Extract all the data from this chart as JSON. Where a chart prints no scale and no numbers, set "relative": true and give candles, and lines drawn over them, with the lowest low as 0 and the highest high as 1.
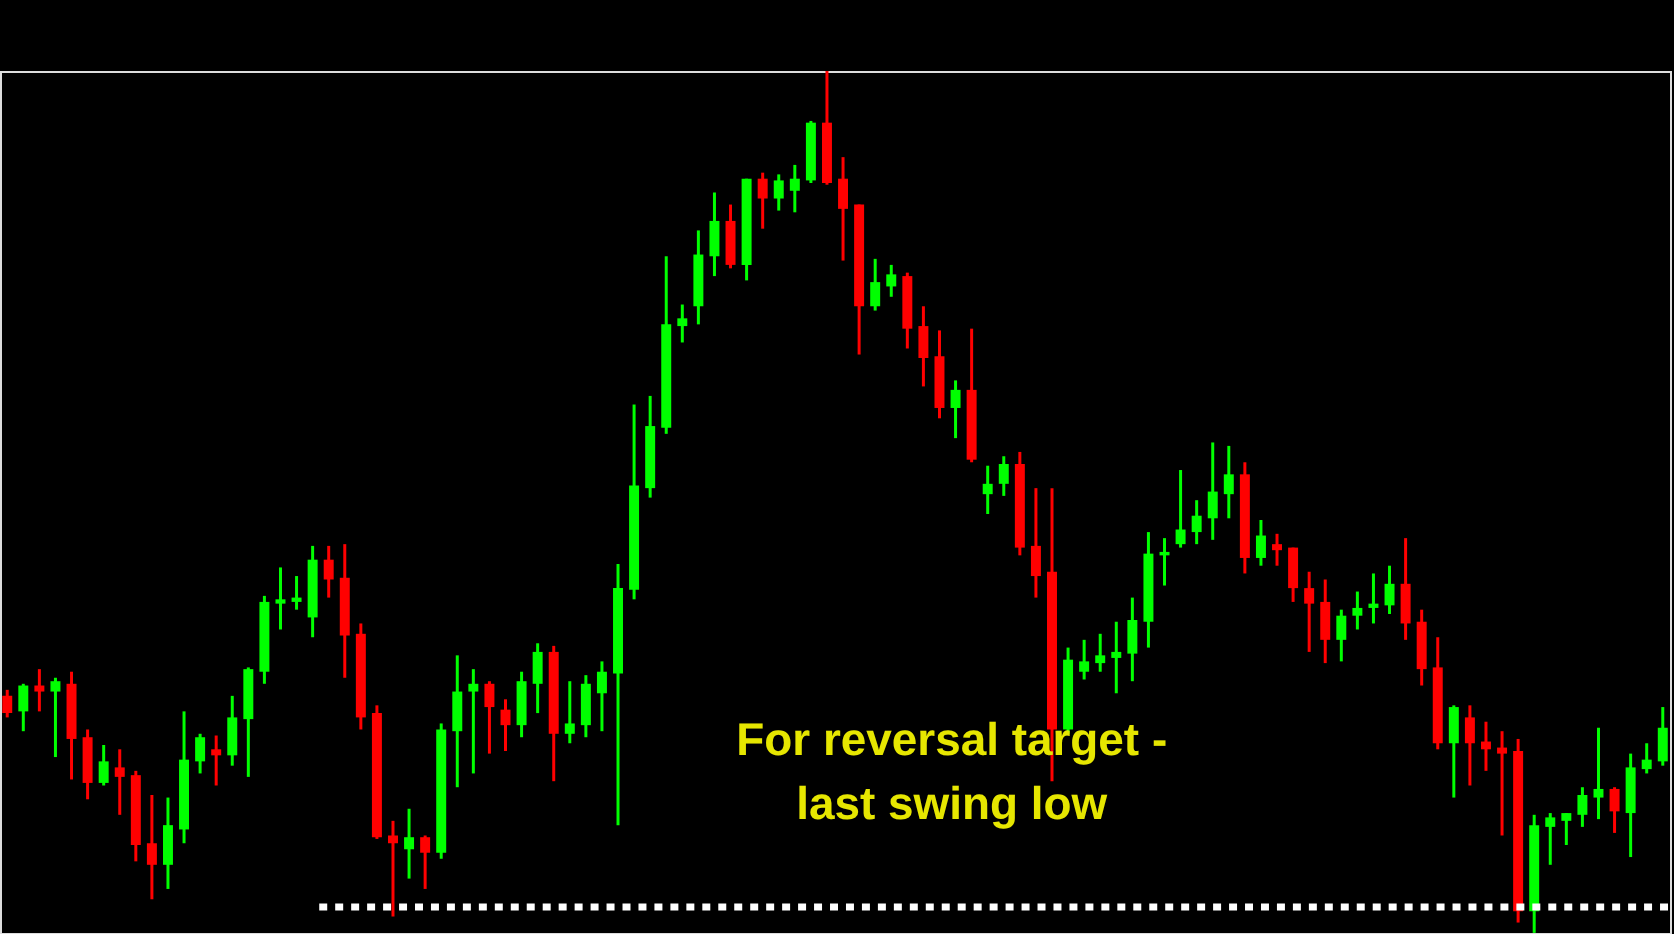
{
  "chart_data": {
    "type": "candlestick",
    "relative": true,
    "categories": [
      null,
      null,
      null,
      null,
      null,
      null,
      null,
      null,
      null,
      null,
      null,
      null,
      null,
      null,
      null,
      null,
      null,
      null,
      null,
      null,
      null,
      null,
      null,
      null,
      null,
      null,
      null,
      null,
      null,
      null,
      null,
      null,
      null,
      null,
      null,
      null,
      null,
      null,
      null,
      null,
      null,
      null,
      null,
      null,
      null,
      null,
      null,
      null,
      null,
      null,
      null,
      null,
      null,
      null,
      null,
      null,
      null,
      null,
      null,
      null,
      null,
      null,
      null,
      null,
      null,
      null,
      null,
      null,
      null,
      null,
      null,
      null,
      null,
      null,
      null,
      null,
      null,
      null,
      null,
      null,
      null,
      null,
      null,
      null,
      null,
      null,
      null,
      null,
      null,
      null,
      null,
      null,
      null,
      null,
      null,
      null,
      null,
      null,
      null,
      null,
      null,
      null,
      null,
      null
    ],
    "ohlc": [
      [
        0.275,
        0.282,
        0.25,
        0.255
      ],
      [
        0.257,
        0.289,
        0.234,
        0.287
      ],
      [
        0.287,
        0.306,
        0.257,
        0.28
      ],
      [
        0.28,
        0.296,
        0.204,
        0.292
      ],
      [
        0.289,
        0.303,
        0.178,
        0.225
      ],
      [
        0.227,
        0.236,
        0.155,
        0.174
      ],
      [
        0.174,
        0.218,
        0.171,
        0.199
      ],
      [
        0.192,
        0.213,
        0.137,
        0.181
      ],
      [
        0.183,
        0.188,
        0.083,
        0.102
      ],
      [
        0.104,
        0.16,
        0.039,
        0.079
      ],
      [
        0.079,
        0.157,
        0.051,
        0.125
      ],
      [
        0.12,
        0.257,
        0.104,
        0.201
      ],
      [
        0.199,
        0.231,
        0.185,
        0.227
      ],
      [
        0.213,
        0.229,
        0.171,
        0.206
      ],
      [
        0.206,
        0.275,
        0.194,
        0.25
      ],
      [
        0.248,
        0.308,
        0.181,
        0.306
      ],
      [
        0.303,
        0.391,
        0.289,
        0.384
      ],
      [
        0.382,
        0.424,
        0.352,
        0.387
      ],
      [
        0.384,
        0.414,
        0.375,
        0.389
      ],
      [
        0.366,
        0.449,
        0.343,
        0.433
      ],
      [
        0.433,
        0.449,
        0.389,
        0.41
      ],
      [
        0.412,
        0.451,
        0.296,
        0.345
      ],
      [
        0.347,
        0.359,
        0.236,
        0.25
      ],
      [
        0.255,
        0.264,
        0.109,
        0.111
      ],
      [
        0.113,
        0.13,
        0.019,
        0.104
      ],
      [
        0.097,
        0.144,
        0.063,
        0.111
      ],
      [
        0.111,
        0.113,
        0.051,
        0.093
      ],
      [
        0.093,
        0.243,
        0.086,
        0.236
      ],
      [
        0.234,
        0.322,
        0.169,
        0.28
      ],
      [
        0.28,
        0.306,
        0.185,
        0.289
      ],
      [
        0.289,
        0.292,
        0.208,
        0.262
      ],
      [
        0.259,
        0.271,
        0.211,
        0.241
      ],
      [
        0.241,
        0.303,
        0.227,
        0.292
      ],
      [
        0.289,
        0.336,
        0.255,
        0.326
      ],
      [
        0.326,
        0.333,
        0.176,
        0.231
      ],
      [
        0.231,
        0.292,
        0.22,
        0.243
      ],
      [
        0.241,
        0.299,
        0.227,
        0.289
      ],
      [
        0.278,
        0.315,
        0.234,
        0.303
      ],
      [
        0.301,
        0.428,
        0.125,
        0.4
      ],
      [
        0.398,
        0.613,
        0.387,
        0.519
      ],
      [
        0.516,
        0.623,
        0.505,
        0.588
      ],
      [
        0.586,
        0.785,
        0.579,
        0.706
      ],
      [
        0.704,
        0.729,
        0.685,
        0.713
      ],
      [
        0.727,
        0.815,
        0.706,
        0.787
      ],
      [
        0.785,
        0.859,
        0.762,
        0.826
      ],
      [
        0.826,
        0.845,
        0.771,
        0.775
      ],
      [
        0.775,
        0.875,
        0.757,
        0.875
      ],
      [
        0.875,
        0.882,
        0.817,
        0.852
      ],
      [
        0.852,
        0.88,
        0.838,
        0.873
      ],
      [
        0.861,
        0.891,
        0.836,
        0.875
      ],
      [
        0.873,
        0.942,
        0.87,
        0.94
      ],
      [
        0.94,
        1.0,
        0.868,
        0.87
      ],
      [
        0.875,
        0.9,
        0.78,
        0.84
      ],
      [
        0.845,
        0.845,
        0.671,
        0.727
      ],
      [
        0.727,
        0.782,
        0.722,
        0.755
      ],
      [
        0.75,
        0.775,
        0.738,
        0.764
      ],
      [
        0.762,
        0.766,
        0.678,
        0.701
      ],
      [
        0.704,
        0.727,
        0.634,
        0.667
      ],
      [
        0.669,
        0.699,
        0.597,
        0.609
      ],
      [
        0.609,
        0.641,
        0.574,
        0.63
      ],
      [
        0.63,
        0.701,
        0.546,
        0.549
      ],
      [
        0.509,
        0.542,
        0.486,
        0.521
      ],
      [
        0.521,
        0.553,
        0.507,
        0.544
      ],
      [
        0.544,
        0.558,
        0.438,
        0.447
      ],
      [
        0.449,
        0.516,
        0.389,
        0.414
      ],
      [
        0.419,
        0.516,
        0.176,
        0.236
      ],
      [
        0.236,
        0.331,
        0.231,
        0.317
      ],
      [
        0.303,
        0.34,
        0.294,
        0.315
      ],
      [
        0.313,
        0.347,
        0.303,
        0.322
      ],
      [
        0.319,
        0.361,
        0.278,
        0.326
      ],
      [
        0.324,
        0.389,
        0.292,
        0.363
      ],
      [
        0.361,
        0.465,
        0.331,
        0.44
      ],
      [
        0.438,
        0.458,
        0.403,
        0.442
      ],
      [
        0.451,
        0.537,
        0.447,
        0.468
      ],
      [
        0.465,
        0.502,
        0.451,
        0.484
      ],
      [
        0.481,
        0.569,
        0.456,
        0.512
      ],
      [
        0.509,
        0.565,
        0.481,
        0.532
      ],
      [
        0.532,
        0.546,
        0.417,
        0.435
      ],
      [
        0.435,
        0.479,
        0.426,
        0.461
      ],
      [
        0.451,
        0.463,
        0.426,
        0.444
      ],
      [
        0.447,
        0.447,
        0.384,
        0.4
      ],
      [
        0.4,
        0.419,
        0.326,
        0.382
      ],
      [
        0.384,
        0.41,
        0.313,
        0.34
      ],
      [
        0.34,
        0.375,
        0.315,
        0.368
      ],
      [
        0.368,
        0.396,
        0.352,
        0.377
      ],
      [
        0.377,
        0.417,
        0.359,
        0.382
      ],
      [
        0.38,
        0.426,
        0.37,
        0.405
      ],
      [
        0.405,
        0.458,
        0.34,
        0.359
      ],
      [
        0.361,
        0.375,
        0.287,
        0.306
      ],
      [
        0.308,
        0.343,
        0.213,
        0.22
      ],
      [
        0.22,
        0.264,
        0.157,
        0.262
      ],
      [
        0.25,
        0.264,
        0.171,
        0.22
      ],
      [
        0.222,
        0.245,
        0.188,
        0.213
      ],
      [
        0.215,
        0.234,
        0.113,
        0.208
      ],
      [
        0.211,
        0.225,
        0.012,
        0.025
      ],
      [
        0.025,
        0.137,
        0.0,
        0.125
      ],
      [
        0.123,
        0.139,
        0.079,
        0.134
      ],
      [
        0.13,
        0.139,
        0.102,
        0.139
      ],
      [
        0.137,
        0.169,
        0.123,
        0.16
      ],
      [
        0.157,
        0.238,
        0.132,
        0.167
      ],
      [
        0.167,
        0.169,
        0.116,
        0.141
      ],
      [
        0.139,
        0.208,
        0.088,
        0.192
      ],
      [
        0.19,
        0.22,
        0.185,
        0.201
      ],
      [
        0.199,
        0.262,
        0.194,
        0.238
      ]
    ],
    "colors": [
      "#ff0000",
      "#00ff00",
      "#ff0000",
      "#00ff00",
      "#ff0000",
      "#ff0000",
      "#00ff00",
      "#ff0000",
      "#ff0000",
      "#ff0000",
      "#00ff00",
      "#00ff00",
      "#00ff00",
      "#ff0000",
      "#00ff00",
      "#00ff00",
      "#00ff00",
      "#00ff00",
      "#00ff00",
      "#00ff00",
      "#ff0000",
      "#ff0000",
      "#ff0000",
      "#ff0000",
      "#ff0000",
      "#00ff00",
      "#ff0000",
      "#00ff00",
      "#00ff00",
      "#00ff00",
      "#ff0000",
      "#ff0000",
      "#00ff00",
      "#00ff00",
      "#ff0000",
      "#00ff00",
      "#00ff00",
      "#00ff00",
      "#00ff00",
      "#00ff00",
      "#00ff00",
      "#00ff00",
      "#00ff00",
      "#00ff00",
      "#00ff00",
      "#ff0000",
      "#00ff00",
      "#ff0000",
      "#00ff00",
      "#00ff00",
      "#00ff00",
      "#ff0000",
      "#ff0000",
      "#ff0000",
      "#00ff00",
      "#00ff00",
      "#ff0000",
      "#ff0000",
      "#ff0000",
      "#00ff00",
      "#ff0000",
      "#00ff00",
      "#00ff00",
      "#ff0000",
      "#ff0000",
      "#ff0000",
      "#00ff00",
      "#00ff00",
      "#00ff00",
      "#00ff00",
      "#00ff00",
      "#00ff00",
      "#00ff00",
      "#00ff00",
      "#00ff00",
      "#00ff00",
      "#00ff00",
      "#ff0000",
      "#00ff00",
      "#ff0000",
      "#ff0000",
      "#ff0000",
      "#ff0000",
      "#00ff00",
      "#00ff00",
      "#00ff00",
      "#00ff00",
      "#ff0000",
      "#ff0000",
      "#ff0000",
      "#00ff00",
      "#ff0000",
      "#ff0000",
      "#ff0000",
      "#ff0000",
      "#00ff00",
      "#00ff00",
      "#00ff00",
      "#00ff00",
      "#00ff00",
      "#ff0000",
      "#00ff00",
      "#00ff00",
      "#00ff00"
    ],
    "ref_lines": [
      {
        "axis": "y",
        "value": 0.03,
        "color": "#ffffff",
        "line_style": "dotted"
      }
    ],
    "annotations": [
      "For reversal target -\nlast swing low"
    ]
  }
}
